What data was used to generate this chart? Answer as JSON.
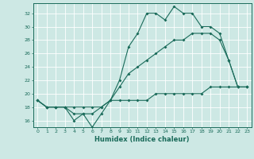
{
  "xlabel": "Humidex (Indice chaleur)",
  "background_color": "#cde8e4",
  "line_color": "#1a6b5a",
  "grid_color": "#ffffff",
  "xlim": [
    -0.5,
    23.5
  ],
  "ylim": [
    15,
    33.5
  ],
  "yticks": [
    16,
    18,
    20,
    22,
    24,
    26,
    28,
    30,
    32
  ],
  "xticks": [
    0,
    1,
    2,
    3,
    4,
    5,
    6,
    7,
    8,
    9,
    10,
    11,
    12,
    13,
    14,
    15,
    16,
    17,
    18,
    19,
    20,
    21,
    22,
    23
  ],
  "curve1_x": [
    0,
    1,
    2,
    3,
    4,
    5,
    6,
    7,
    8,
    9,
    10,
    11,
    12,
    13,
    14,
    15,
    16,
    17,
    18,
    19,
    20,
    21,
    22,
    23
  ],
  "curve1_y": [
    19,
    18,
    18,
    18,
    16,
    17,
    15,
    17,
    19,
    22,
    27,
    29,
    32,
    32,
    31,
    33,
    32,
    32,
    30,
    30,
    29,
    25,
    21,
    21
  ],
  "curve2_x": [
    0,
    1,
    2,
    3,
    4,
    5,
    6,
    7,
    8,
    9,
    10,
    11,
    12,
    13,
    14,
    15,
    16,
    17,
    18,
    19,
    20,
    21,
    22,
    23
  ],
  "curve2_y": [
    19,
    18,
    18,
    18,
    17,
    17,
    17,
    18,
    19,
    21,
    23,
    24,
    25,
    26,
    27,
    28,
    28,
    29,
    29,
    29,
    28,
    25,
    21,
    21
  ],
  "curve3_x": [
    0,
    1,
    2,
    3,
    4,
    5,
    6,
    7,
    8,
    9,
    10,
    11,
    12,
    13,
    14,
    15,
    16,
    17,
    18,
    19,
    20,
    21,
    22,
    23
  ],
  "curve3_y": [
    19,
    18,
    18,
    18,
    18,
    18,
    18,
    18,
    19,
    19,
    19,
    19,
    19,
    20,
    20,
    20,
    20,
    20,
    20,
    21,
    21,
    21,
    21,
    21
  ]
}
